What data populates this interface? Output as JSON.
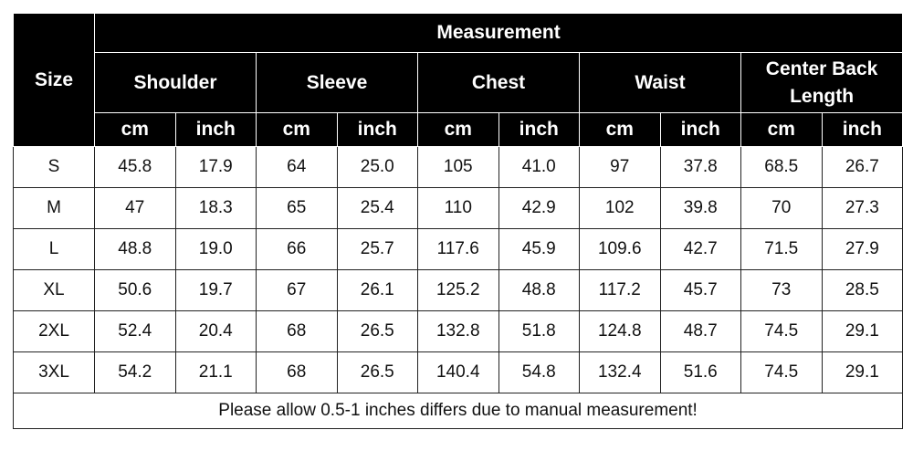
{
  "header": {
    "corner": "Size",
    "group": "Measurement",
    "columns": [
      "Shoulder",
      "Sleeve",
      "Chest",
      "Waist",
      "Center Back Length"
    ],
    "units": [
      "cm",
      "inch",
      "cm",
      "inch",
      "cm",
      "inch",
      "cm",
      "inch",
      "cm",
      "inch"
    ]
  },
  "table": {
    "rows": [
      [
        "S",
        "45.8",
        "17.9",
        "64",
        "25.0",
        "105",
        "41.0",
        "97",
        "37.8",
        "68.5",
        "26.7"
      ],
      [
        "M",
        "47",
        "18.3",
        "65",
        "25.4",
        "110",
        "42.9",
        "102",
        "39.8",
        "70",
        "27.3"
      ],
      [
        "L",
        "48.8",
        "19.0",
        "66",
        "25.7",
        "117.6",
        "45.9",
        "109.6",
        "42.7",
        "71.5",
        "27.9"
      ],
      [
        "XL",
        "50.6",
        "19.7",
        "67",
        "26.1",
        "125.2",
        "48.8",
        "117.2",
        "45.7",
        "73",
        "28.5"
      ],
      [
        "2XL",
        "52.4",
        "20.4",
        "68",
        "26.5",
        "132.8",
        "51.8",
        "124.8",
        "48.7",
        "74.5",
        "29.1"
      ],
      [
        "3XL",
        "54.2",
        "21.1",
        "68",
        "26.5",
        "140.4",
        "54.8",
        "132.4",
        "51.6",
        "74.5",
        "29.1"
      ]
    ]
  },
  "footer": "Please allow 0.5-1 inches differs due to manual measurement!"
}
